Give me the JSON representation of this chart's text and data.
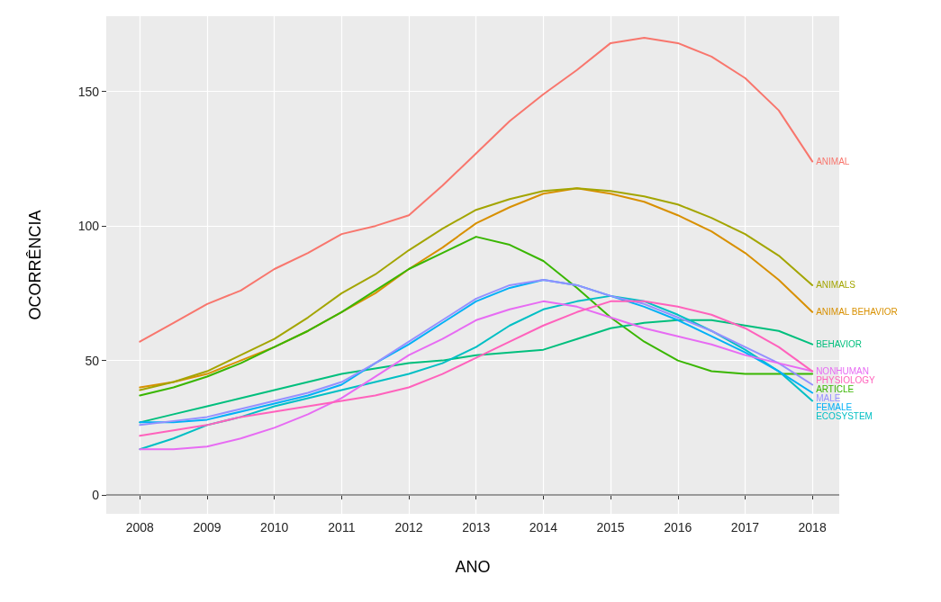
{
  "chart_data": {
    "type": "line",
    "xlabel": "ANO",
    "ylabel": "OCORRÊNCIA",
    "x": [
      2008,
      2008.5,
      2009,
      2009.5,
      2010,
      2010.5,
      2011,
      2011.5,
      2012,
      2012.5,
      2013,
      2013.5,
      2014,
      2014.5,
      2015,
      2015.5,
      2016,
      2016.5,
      2017,
      2017.5,
      2018
    ],
    "series": [
      {
        "name": "ANIMAL",
        "color": "#f8766d",
        "values": [
          57,
          64,
          71,
          76,
          84,
          90,
          97,
          100,
          104,
          115,
          127,
          139,
          149,
          158,
          168,
          170,
          168,
          163,
          155,
          143,
          124
        ]
      },
      {
        "name": "ANIMAL BEHAVIOR",
        "color": "#d89000",
        "values": [
          40,
          42,
          45,
          50,
          55,
          61,
          68,
          75,
          84,
          92,
          101,
          107,
          112,
          114,
          112,
          109,
          104,
          98,
          90,
          80,
          68
        ]
      },
      {
        "name": "ANIMALS",
        "color": "#a3a500",
        "values": [
          39,
          42,
          46,
          52,
          58,
          66,
          75,
          82,
          91,
          99,
          106,
          110,
          113,
          114,
          113,
          111,
          108,
          103,
          97,
          89,
          78
        ]
      },
      {
        "name": "ARTICLE",
        "color": "#39b600",
        "values": [
          37,
          40,
          44,
          49,
          55,
          61,
          68,
          76,
          84,
          90,
          96,
          93,
          87,
          77,
          66,
          57,
          50,
          46,
          45,
          45,
          45
        ]
      },
      {
        "name": "BEHAVIOR",
        "color": "#00bf7d",
        "values": [
          27,
          30,
          33,
          36,
          39,
          42,
          45,
          47,
          49,
          50,
          52,
          53,
          54,
          58,
          62,
          64,
          65,
          65,
          63,
          61,
          56
        ]
      },
      {
        "name": "ECOSYSTEM",
        "color": "#00bfc4",
        "values": [
          17,
          21,
          26,
          29,
          33,
          36,
          39,
          42,
          45,
          49,
          55,
          63,
          69,
          72,
          74,
          72,
          67,
          61,
          54,
          46,
          35
        ]
      },
      {
        "name": "FEMALE",
        "color": "#00b0f6",
        "values": [
          27,
          27,
          28,
          31,
          34,
          37,
          41,
          49,
          56,
          64,
          72,
          77,
          80,
          78,
          74,
          70,
          65,
          59,
          53,
          46,
          38
        ]
      },
      {
        "name": "MALE",
        "color": "#9590ff",
        "values": [
          26,
          27.5,
          29,
          32,
          35,
          38,
          42,
          49,
          57,
          65,
          73,
          78,
          80,
          78,
          74,
          71,
          66,
          61,
          55,
          49,
          41
        ]
      },
      {
        "name": "NONHUMAN",
        "color": "#e76bf3",
        "values": [
          17,
          17,
          18,
          21,
          25,
          30,
          36,
          44,
          52,
          58,
          65,
          69,
          72,
          70,
          66,
          62,
          59,
          56,
          52,
          49,
          46
        ]
      },
      {
        "name": "PHYSIOLOGY",
        "color": "#ff62bc",
        "values": [
          22,
          24,
          26,
          29,
          31,
          33,
          35,
          37,
          40,
          45,
          51,
          57,
          63,
          68,
          72,
          72,
          70,
          67,
          62,
          55,
          46
        ]
      }
    ],
    "xlim": [
      2007.5,
      2018.4
    ],
    "xticks": [
      2008,
      2009,
      2010,
      2011,
      2012,
      2013,
      2014,
      2015,
      2016,
      2017,
      2018
    ],
    "ylim": [
      -7,
      178
    ],
    "yticks": [
      0,
      50,
      100,
      150
    ],
    "ref_lines": [
      {
        "axis": "y",
        "value": 0,
        "color": "#999999"
      }
    ],
    "grid": true,
    "legend": false,
    "marker": "none",
    "line_style": "solid"
  }
}
